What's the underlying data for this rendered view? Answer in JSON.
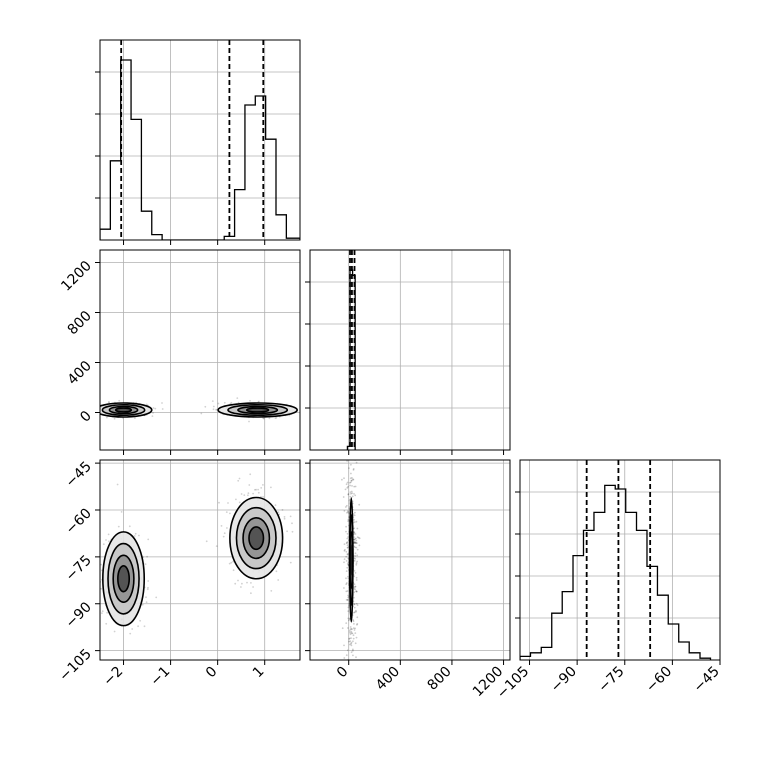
{
  "chart_data": {
    "type": "corner",
    "parameters": [
      {
        "xlim": [
          -2.5,
          1.75
        ],
        "xticks": [
          -2,
          -1,
          0,
          1
        ],
        "xtick_labels": [
          "−2",
          "−1",
          "0",
          "1"
        ]
      },
      {
        "xlim": [
          -300,
          1250
        ],
        "ylim": [
          -300,
          1300
        ],
        "ticks": [
          0,
          400,
          800,
          1200
        ],
        "tick_labels": [
          "0",
          "400",
          "800",
          "1200"
        ]
      },
      {
        "xlim": [
          -108,
          -45
        ],
        "ylim": [
          -108,
          -44
        ],
        "ticks": [
          -105,
          -90,
          -75,
          -60,
          -45
        ],
        "tick_labels": [
          "−105",
          "−90",
          "−75",
          "−60",
          "−45"
        ]
      }
    ],
    "grid": true,
    "quantiles": {
      "param1": [
        -2.05,
        0.25,
        0.97
      ],
      "param2": [
        10,
        25,
        45
      ],
      "param3": [
        -87,
        -77,
        -67
      ]
    },
    "histogram_param1": {
      "bin_edges": [
        -2.5,
        -2.28,
        -2.06,
        -1.84,
        -1.62,
        -1.4,
        -1.18,
        -0.96,
        -0.74,
        -0.52,
        -0.3,
        -0.08,
        0.14,
        0.36,
        0.58,
        0.8,
        1.02,
        1.24,
        1.46,
        1.75
      ],
      "values": [
        0.06,
        0.44,
        1.0,
        0.67,
        0.16,
        0.03,
        0.0,
        0.0,
        0.0,
        0.0,
        0.0,
        0.0,
        0.02,
        0.28,
        0.75,
        0.8,
        0.56,
        0.14,
        0.01
      ]
    },
    "histogram_param2": {
      "bin_edges": [
        -10,
        10,
        30,
        50
      ],
      "values": [
        0.02,
        1.0,
        0.97
      ]
    },
    "histogram_param3": {
      "bin_edges": [
        -108,
        -104.7,
        -101.3,
        -98,
        -94.7,
        -91.3,
        -88,
        -84.7,
        -81.3,
        -78,
        -74.7,
        -71.3,
        -68,
        -64.7,
        -61.3,
        -58,
        -54.7,
        -51.3,
        -48
      ],
      "values": [
        0.02,
        0.04,
        0.07,
        0.26,
        0.38,
        0.58,
        0.72,
        0.82,
        0.97,
        0.95,
        0.82,
        0.72,
        0.52,
        0.36,
        0.2,
        0.1,
        0.04,
        0.01
      ]
    },
    "clusters_param1_param2": [
      {
        "x": -2.0,
        "y": 20,
        "sx": 0.3,
        "sy": 28
      },
      {
        "x": 0.85,
        "y": 20,
        "sx": 0.42,
        "sy": 28
      }
    ],
    "clusters_param1_param3": [
      {
        "x": -2.0,
        "y": -82,
        "sx": 0.22,
        "sy": 7.5
      },
      {
        "x": 0.82,
        "y": -69,
        "sx": 0.28,
        "sy": 6.5
      }
    ],
    "cluster_param2_param3": {
      "x": 20,
      "y": -76,
      "sx": 22,
      "sy": 9
    }
  }
}
